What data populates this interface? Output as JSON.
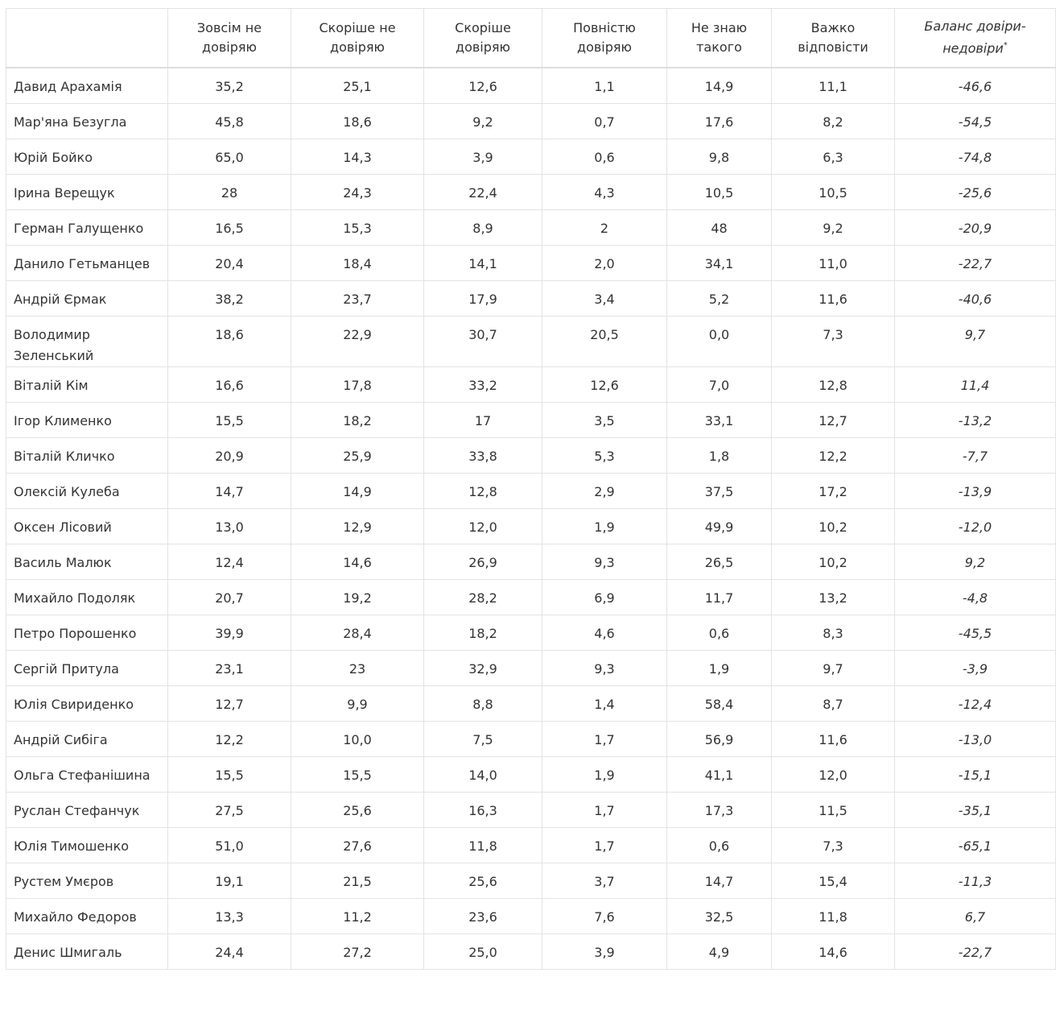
{
  "table": {
    "columns": [
      "Зовсім не довіряю",
      "Скоріше не довіряю",
      "Скоріше довіряю",
      "Повністю довіряю",
      "Не знаю такого",
      "Важко відповісти",
      "Баланс довіри-недовіри"
    ],
    "balance_note_mark": "*",
    "rows": [
      [
        "Давид Арахамія",
        "35,2",
        "25,1",
        "12,6",
        "1,1",
        "14,9",
        "11,1",
        "-46,6"
      ],
      [
        "Мар'яна Безугла",
        "45,8",
        "18,6",
        "9,2",
        "0,7",
        "17,6",
        "8,2",
        "-54,5"
      ],
      [
        "Юрій Бойко",
        "65,0",
        "14,3",
        "3,9",
        "0,6",
        "9,8",
        "6,3",
        "-74,8"
      ],
      [
        "Ірина Верещук",
        "28",
        "24,3",
        "22,4",
        "4,3",
        "10,5",
        "10,5",
        "-25,6"
      ],
      [
        "Герман Галущенко",
        "16,5",
        "15,3",
        "8,9",
        "2",
        "48",
        "9,2",
        "-20,9"
      ],
      [
        "Данило Гетьманцев",
        "20,4",
        "18,4",
        "14,1",
        "2,0",
        "34,1",
        "11,0",
        "-22,7"
      ],
      [
        "Андрій Єрмак",
        "38,2",
        "23,7",
        "17,9",
        "3,4",
        "5,2",
        "11,6",
        "-40,6"
      ],
      [
        "Володимир Зеленський",
        "18,6",
        "22,9",
        "30,7",
        "20,5",
        "0,0",
        "7,3",
        "9,7"
      ],
      [
        "Віталій Кім",
        "16,6",
        "17,8",
        "33,2",
        "12,6",
        "7,0",
        "12,8",
        "11,4"
      ],
      [
        "Ігор Клименко",
        "15,5",
        "18,2",
        "17",
        "3,5",
        "33,1",
        "12,7",
        "-13,2"
      ],
      [
        "Віталій Кличко",
        "20,9",
        "25,9",
        "33,8",
        "5,3",
        "1,8",
        "12,2",
        "-7,7"
      ],
      [
        "Олексій Кулеба",
        "14,7",
        "14,9",
        "12,8",
        "2,9",
        "37,5",
        "17,2",
        "-13,9"
      ],
      [
        "Оксен Лісовий",
        "13,0",
        "12,9",
        "12,0",
        "1,9",
        "49,9",
        "10,2",
        "-12,0"
      ],
      [
        "Василь Малюк",
        "12,4",
        "14,6",
        "26,9",
        "9,3",
        "26,5",
        "10,2",
        "9,2"
      ],
      [
        "Михайло Подоляк",
        "20,7",
        "19,2",
        "28,2",
        "6,9",
        "11,7",
        "13,2",
        "-4,8"
      ],
      [
        "Петро Порошенко",
        "39,9",
        "28,4",
        "18,2",
        "4,6",
        "0,6",
        "8,3",
        "-45,5"
      ],
      [
        "Сергій Притула",
        "23,1",
        "23",
        "32,9",
        "9,3",
        "1,9",
        "9,7",
        "-3,9"
      ],
      [
        "Юлія Свириденко",
        "12,7",
        "9,9",
        "8,8",
        "1,4",
        "58,4",
        "8,7",
        "-12,4"
      ],
      [
        "Андрій Сибіга",
        "12,2",
        "10,0",
        "7,5",
        "1,7",
        "56,9",
        "11,6",
        "-13,0"
      ],
      [
        "Ольга Стефанішина",
        "15,5",
        "15,5",
        "14,0",
        "1,9",
        "41,1",
        "12,0",
        "-15,1"
      ],
      [
        "Руслан Стефанчук",
        "27,5",
        "25,6",
        "16,3",
        "1,7",
        "17,3",
        "11,5",
        "-35,1"
      ],
      [
        "Юлія Тимошенко",
        "51,0",
        "27,6",
        "11,8",
        "1,7",
        "0,6",
        "7,3",
        "-65,1"
      ],
      [
        "Рустем Умєров",
        "19,1",
        "21,5",
        "25,6",
        "3,7",
        "14,7",
        "15,4",
        "-11,3"
      ],
      [
        "Михайло Федоров",
        "13,3",
        "11,2",
        "23,6",
        "7,6",
        "32,5",
        "11,8",
        "6,7"
      ],
      [
        "Денис Шмигаль",
        "24,4",
        "27,2",
        "25,0",
        "3,9",
        "4,9",
        "14,6",
        "-22,7"
      ]
    ]
  }
}
